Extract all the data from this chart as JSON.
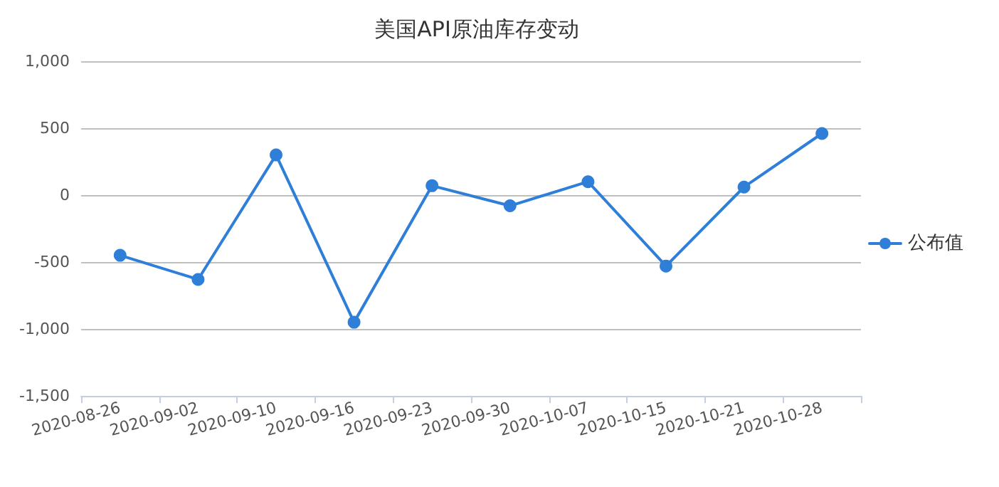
{
  "chart_data": {
    "type": "line",
    "title": "美国API原油库存变动",
    "categories": [
      "2020-08-26",
      "2020-09-02",
      "2020-09-10",
      "2020-09-16",
      "2020-09-23",
      "2020-09-30",
      "2020-10-07",
      "2020-10-15",
      "2020-10-21",
      "2020-10-28"
    ],
    "series": [
      {
        "name": "公布值",
        "color": "#2f7ed8",
        "values": [
          -450,
          -630,
          300,
          -950,
          70,
          -80,
          100,
          -530,
          60,
          460
        ]
      }
    ],
    "ylim": [
      -1500,
      1000
    ],
    "yticks": [
      {
        "value": -1500,
        "label": "-1,500"
      },
      {
        "value": -1000,
        "label": "-1,000"
      },
      {
        "value": -500,
        "label": "-500"
      },
      {
        "value": 0,
        "label": "0"
      },
      {
        "value": 500,
        "label": "500"
      },
      {
        "value": 1000,
        "label": "1,000"
      }
    ],
    "grid": "y",
    "legend": "right",
    "marker": "circle",
    "line_style": "solid"
  }
}
